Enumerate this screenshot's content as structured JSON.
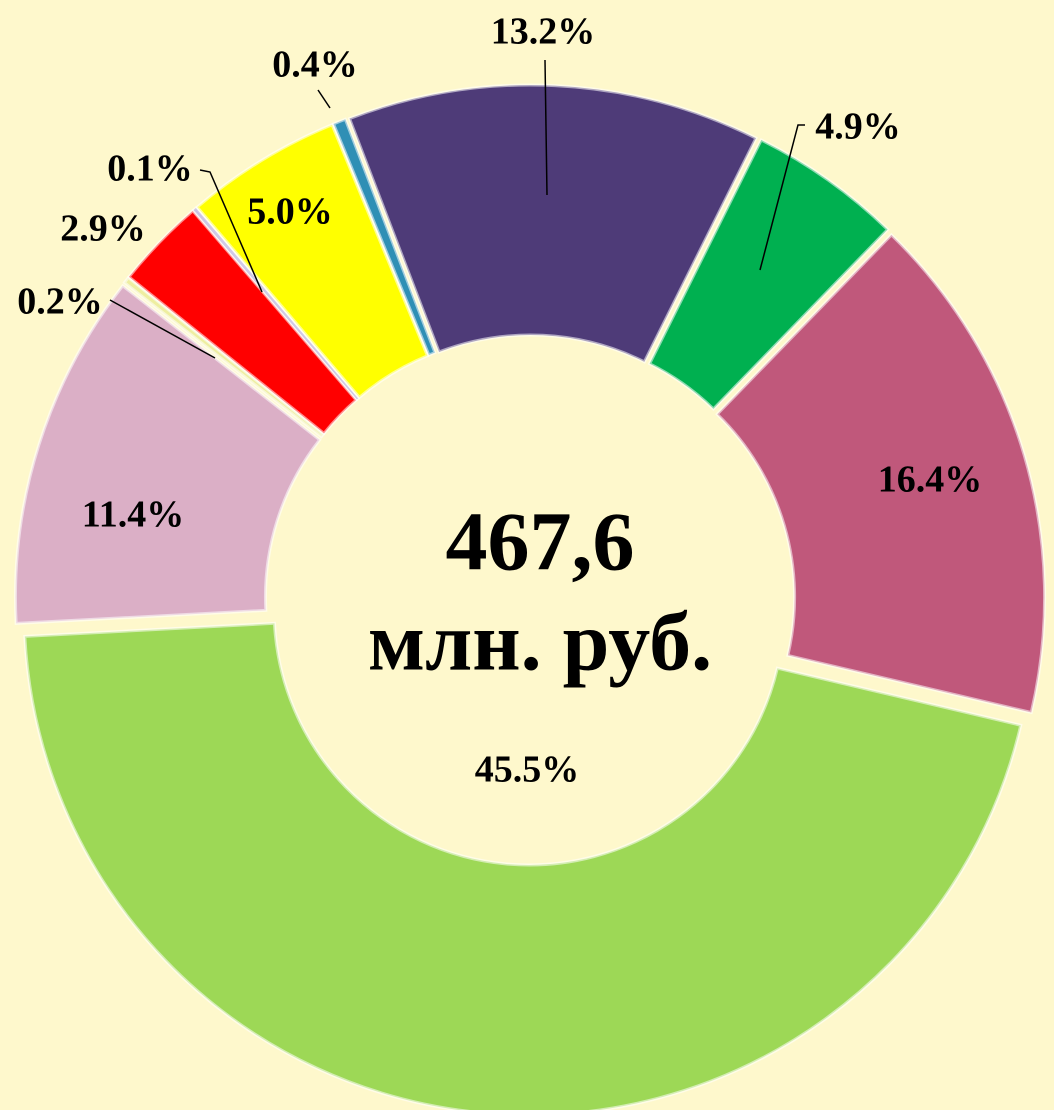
{
  "chart_data": {
    "type": "donut",
    "values": [
      13.2,
      4.9,
      16.4,
      45.5,
      11.4,
      0.2,
      2.9,
      0.1,
      5.0,
      0.4
    ],
    "value_labels": [
      "13.2%",
      "4.9%",
      "16.4%",
      "45.5%",
      "11.4%",
      "0.2%",
      "2.9%",
      "0.1%",
      "5.0%",
      "0.4%"
    ],
    "colors": [
      "#4e3b78",
      "#00b050",
      "#c0587b",
      "#9dd856",
      "#dbafc6",
      "#eeeea0",
      "#ff0000",
      "#9a88c8",
      "#ffff00",
      "#2f8fb5"
    ],
    "center_text": [
      "467,6",
      "млн. руб."
    ]
  }
}
